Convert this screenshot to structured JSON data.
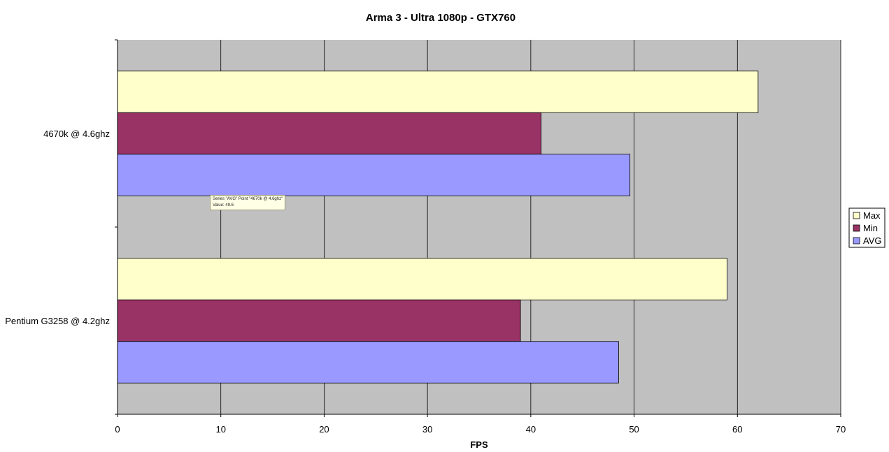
{
  "chart_data": {
    "type": "bar",
    "orientation": "horizontal",
    "title": "Arma 3 - Ultra 1080p - GTX760",
    "xlabel": "FPS",
    "ylabel": "",
    "categories": [
      "4670k @ 4.6ghz",
      "Pentium G3258 @ 4.2ghz"
    ],
    "series": [
      {
        "name": "Max",
        "values": [
          62,
          59
        ],
        "color": "#ffffcc"
      },
      {
        "name": "Min",
        "values": [
          41,
          39
        ],
        "color": "#993366"
      },
      {
        "name": "AVG",
        "values": [
          49.6,
          48.5
        ],
        "color": "#9999ff"
      }
    ],
    "xlim": [
      0,
      70
    ],
    "xticks": [
      0,
      10,
      20,
      30,
      40,
      50,
      60,
      70
    ],
    "grid": true,
    "plot_background": "#c0c0c0",
    "legend_position": "right"
  },
  "tooltip": {
    "line1": "Series \"AVG\" Point \"4670k @ 4.6ghz\"",
    "line2": "Value: 49.6"
  }
}
